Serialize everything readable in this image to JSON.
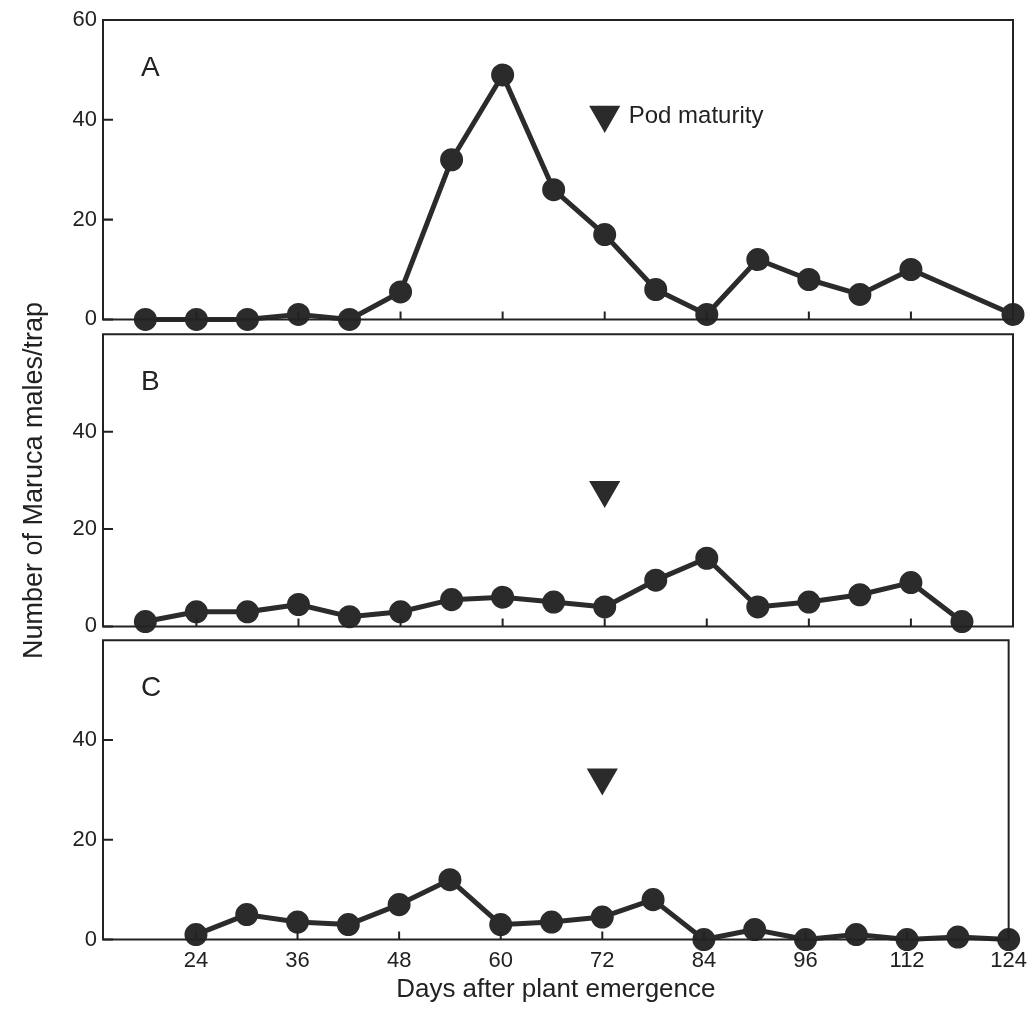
{
  "chart_data": [
    {
      "type": "line",
      "title": "A",
      "categories": [
        null,
        "24",
        null,
        "36",
        null,
        "48",
        null,
        "60",
        null,
        "72",
        null,
        "84",
        null,
        "96",
        null,
        "112",
        null,
        "124"
      ],
      "ylim": [
        0,
        60
      ],
      "yticks": [
        0,
        20,
        40,
        60
      ],
      "tick_labels": "y",
      "grid": false,
      "legend": false,
      "line_style": "solid",
      "series": [
        {
          "color": "#2b2b2b",
          "marker": "circle",
          "values": [
            0,
            0,
            0,
            1,
            0,
            5.5,
            32,
            49,
            26,
            17,
            6,
            1,
            12,
            8,
            5,
            10,
            null,
            1
          ]
        },
        {
          "name": "Pod maturity",
          "type": "scatter",
          "color": "#2b2b2b",
          "marker": "triangle",
          "x": [
            "72"
          ],
          "values": [
            41
          ]
        }
      ]
    },
    {
      "type": "line",
      "title": "B",
      "ylabel": "Number of Maruca males/trap",
      "categories": [
        null,
        "24",
        null,
        "36",
        null,
        "48",
        null,
        "60",
        null,
        "72",
        null,
        "84",
        null,
        "96",
        null,
        "112",
        null,
        "124"
      ],
      "ylim": [
        0,
        60
      ],
      "yticks": [
        0,
        20,
        40
      ],
      "tick_labels": "y",
      "grid": false,
      "legend": false,
      "line_style": "solid",
      "series": [
        {
          "color": "#2b2b2b",
          "marker": "circle",
          "values": [
            1,
            3,
            3,
            4.5,
            2,
            3,
            5.5,
            6,
            5,
            4,
            9.5,
            14,
            4,
            5,
            6.5,
            9,
            1,
            null
          ]
        },
        {
          "type": "scatter",
          "color": "#2b2b2b",
          "marker": "triangle",
          "x": [
            "72"
          ],
          "values": [
            28
          ]
        }
      ]
    },
    {
      "type": "line",
      "title": "C",
      "xlabel": "Days after plant emergence",
      "categories": [
        null,
        "24",
        null,
        "36",
        null,
        "48",
        null,
        "60",
        null,
        "72",
        null,
        "84",
        null,
        "96",
        null,
        "112",
        null,
        "124"
      ],
      "ylim": [
        0,
        60
      ],
      "yticks": [
        0,
        20,
        40
      ],
      "grid": false,
      "legend": false,
      "line_style": "solid",
      "series": [
        {
          "color": "#2b2b2b",
          "marker": "circle",
          "values": [
            null,
            1,
            5,
            3.5,
            3,
            7,
            12,
            3,
            3.5,
            4.5,
            8,
            0,
            2,
            0,
            1,
            0,
            0.5,
            0
          ]
        },
        {
          "type": "scatter",
          "color": "#2b2b2b",
          "marker": "triangle",
          "x": [
            "72"
          ],
          "values": [
            32.5
          ]
        }
      ]
    }
  ]
}
